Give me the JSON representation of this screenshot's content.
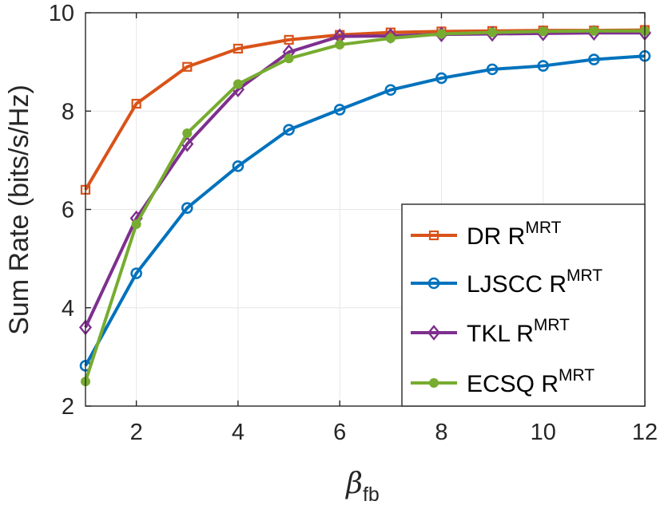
{
  "chart_data": {
    "type": "line",
    "title": "",
    "xlabel_symbol": "β",
    "xlabel_sub": "fb",
    "ylabel": "Sum Rate (bits/s/Hz)",
    "xlim": [
      1,
      12
    ],
    "ylim": [
      2,
      10
    ],
    "x_ticks": [
      2,
      4,
      6,
      8,
      10,
      12
    ],
    "y_ticks": [
      2,
      4,
      6,
      8,
      10
    ],
    "grid": true,
    "legend_position": "bottom-right",
    "x": [
      1,
      2,
      3,
      4,
      5,
      6,
      7,
      8,
      9,
      10,
      11,
      12
    ],
    "series": [
      {
        "name": "DR R",
        "sup": "MRT",
        "color": "#D95319",
        "marker": "square",
        "values": [
          6.4,
          8.15,
          8.9,
          9.27,
          9.45,
          9.55,
          9.6,
          9.62,
          9.63,
          9.64,
          9.64,
          9.65
        ]
      },
      {
        "name": "LJSCC R",
        "sup": "MRT",
        "color": "#0072BD",
        "marker": "circle",
        "values": [
          2.82,
          4.7,
          6.03,
          6.88,
          7.62,
          8.03,
          8.43,
          8.67,
          8.85,
          8.92,
          9.05,
          9.12
        ]
      },
      {
        "name": "TKL R",
        "sup": "MRT",
        "color": "#7E2F8E",
        "marker": "diamond",
        "values": [
          3.6,
          5.82,
          7.33,
          8.44,
          9.2,
          9.52,
          9.53,
          9.56,
          9.57,
          9.58,
          9.59,
          9.59
        ]
      },
      {
        "name": "ECSQ R",
        "sup": "MRT",
        "color": "#77AC30",
        "marker": "dot",
        "values": [
          2.5,
          5.7,
          7.55,
          8.55,
          9.07,
          9.35,
          9.48,
          9.57,
          9.6,
          9.62,
          9.63,
          9.63
        ]
      }
    ]
  }
}
